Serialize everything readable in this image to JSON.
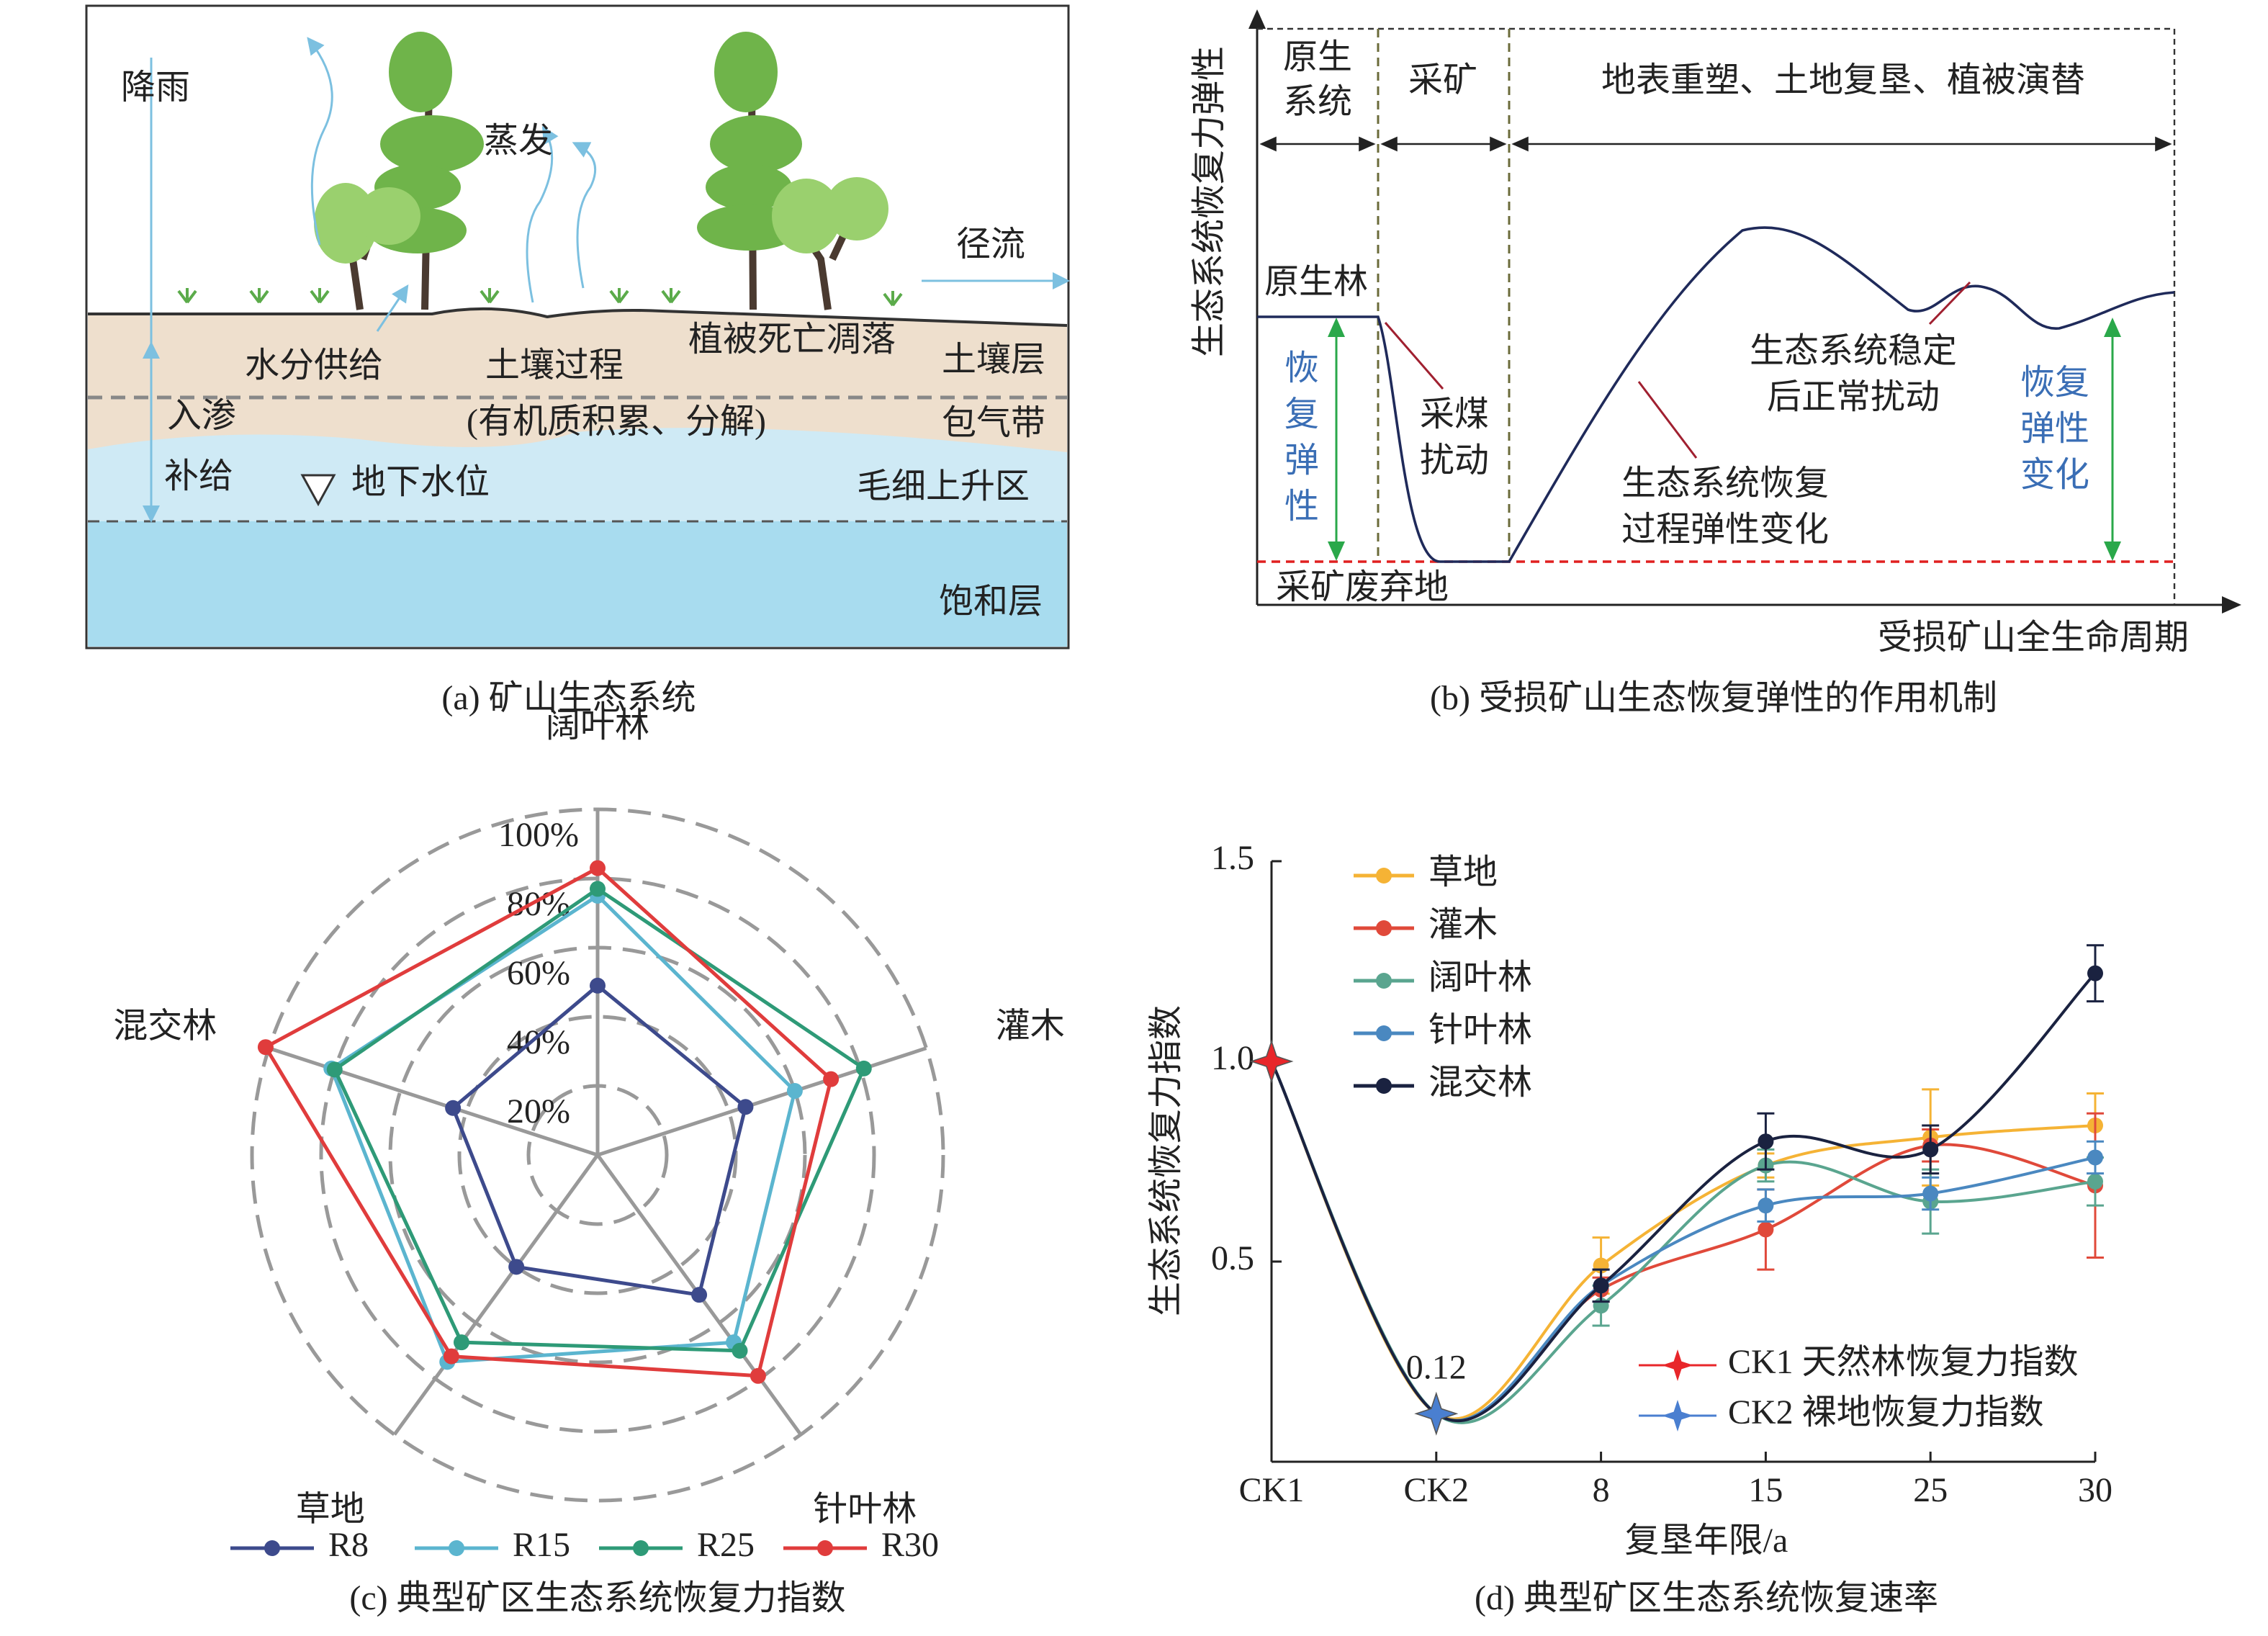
{
  "diagram_a": {
    "labels": [
      "降雨",
      "蒸发",
      "径流",
      "水分供给",
      "土壤过程",
      "植被死亡凋落",
      "土壤层",
      "入渗",
      "(有机质积累、分解)",
      "包气带",
      "补给",
      "地下水位",
      "毛细上升区",
      "饱和层"
    ],
    "caption": "(a) 矿山生态系统"
  },
  "diagram_b": {
    "y_label": "生态系统恢复力弹性",
    "x_label": "受损矿山全生命周期",
    "phases": [
      [
        "原生",
        "系统"
      ],
      [
        "采矿"
      ],
      [
        "地表重塑、土地复垦、植被演替"
      ]
    ],
    "primary_forest": "原生林",
    "wasteland": "采矿废弃地",
    "resilience": [
      "恢",
      "复",
      "弹",
      "性"
    ],
    "mining_disturbance": [
      "采煤",
      "扰动"
    ],
    "recovery_process": [
      "生态系统恢复",
      "过程弹性变化"
    ],
    "stable_disturbance": [
      "生态系统稳定",
      "后正常扰动"
    ],
    "resilience_change": [
      "恢复",
      "弹性",
      "变化"
    ],
    "caption": "(b) 受损矿山生态恢复弹性的作用机制"
  },
  "chart_data": [
    {
      "type": "radar",
      "caption": "(c) 典型矿区生态系统恢复力指数",
      "categories": [
        "阔叶林",
        "灌木",
        "针叶林",
        "草地",
        "混交林"
      ],
      "rlim": [
        0,
        100
      ],
      "rticks": [
        {
          "value": 20,
          "label": "20%"
        },
        {
          "value": 40,
          "label": "40%"
        },
        {
          "value": 60,
          "label": "60%"
        },
        {
          "value": 80,
          "label": "80%"
        },
        {
          "value": 100,
          "label": "100%"
        }
      ],
      "series": [
        {
          "name": "R8",
          "color": "#3d4a8c",
          "values": [
            49,
            45,
            50,
            40,
            44
          ]
        },
        {
          "name": "R15",
          "color": "#5bb5cf",
          "values": [
            75,
            60,
            67,
            74,
            81
          ]
        },
        {
          "name": "R25",
          "color": "#2e9a77",
          "values": [
            77,
            81,
            70,
            67,
            80
          ]
        },
        {
          "name": "R30",
          "color": "#e03c3c",
          "values": [
            83,
            71,
            79,
            72,
            101
          ]
        }
      ]
    },
    {
      "type": "line",
      "caption": "(d) 典型矿区生态系统恢复速率",
      "x_label": "复垦年限/a",
      "y_label": "生态系统恢复力指数",
      "categories": [
        "CK1",
        "CK2",
        "8",
        "15",
        "25",
        "30"
      ],
      "ylim": [
        0,
        1.5
      ],
      "yticks": [
        0.5,
        {
          "value": 1,
          "label": "1.0"
        },
        1.5
      ],
      "series": [
        {
          "name": "草地",
          "color": "#f5b335",
          "values": [
            1,
            0.12,
            0.49,
            0.74,
            0.81,
            0.84
          ],
          "errors": [
            null,
            null,
            0.07,
            0.03,
            0.12,
            0.08
          ]
        },
        {
          "name": "灌木",
          "color": "#e0493a",
          "values": [
            1,
            0.12,
            0.43,
            0.58,
            0.79,
            0.69
          ],
          "errors": [
            null,
            null,
            0.03,
            0.1,
            0.04,
            0.18
          ]
        },
        {
          "name": "阔叶林",
          "color": "#5aa58f",
          "values": [
            1,
            0.12,
            0.39,
            0.74,
            0.65,
            0.7
          ],
          "errors": [
            null,
            null,
            0.05,
            0.04,
            0.08,
            0.06
          ]
        },
        {
          "name": "针叶林",
          "color": "#4a88c0",
          "values": [
            1,
            0.12,
            0.44,
            0.64,
            0.67,
            0.76
          ],
          "errors": [
            null,
            null,
            0.04,
            0.04,
            0.04,
            0.04
          ]
        },
        {
          "name": "混交林",
          "color": "#1a2240",
          "values": [
            1,
            0.12,
            0.44,
            0.8,
            0.78,
            1.22
          ],
          "errors": [
            null,
            null,
            0.04,
            0.07,
            0.06,
            0.07
          ]
        }
      ],
      "markers": [
        {
          "name": "CK1 天然林恢复力指数",
          "color": "#e8262a"
        },
        {
          "name": "CK2 裸地恢复力指数",
          "color": "#4a7fd0"
        }
      ],
      "annotations": [
        "0.12"
      ]
    }
  ]
}
